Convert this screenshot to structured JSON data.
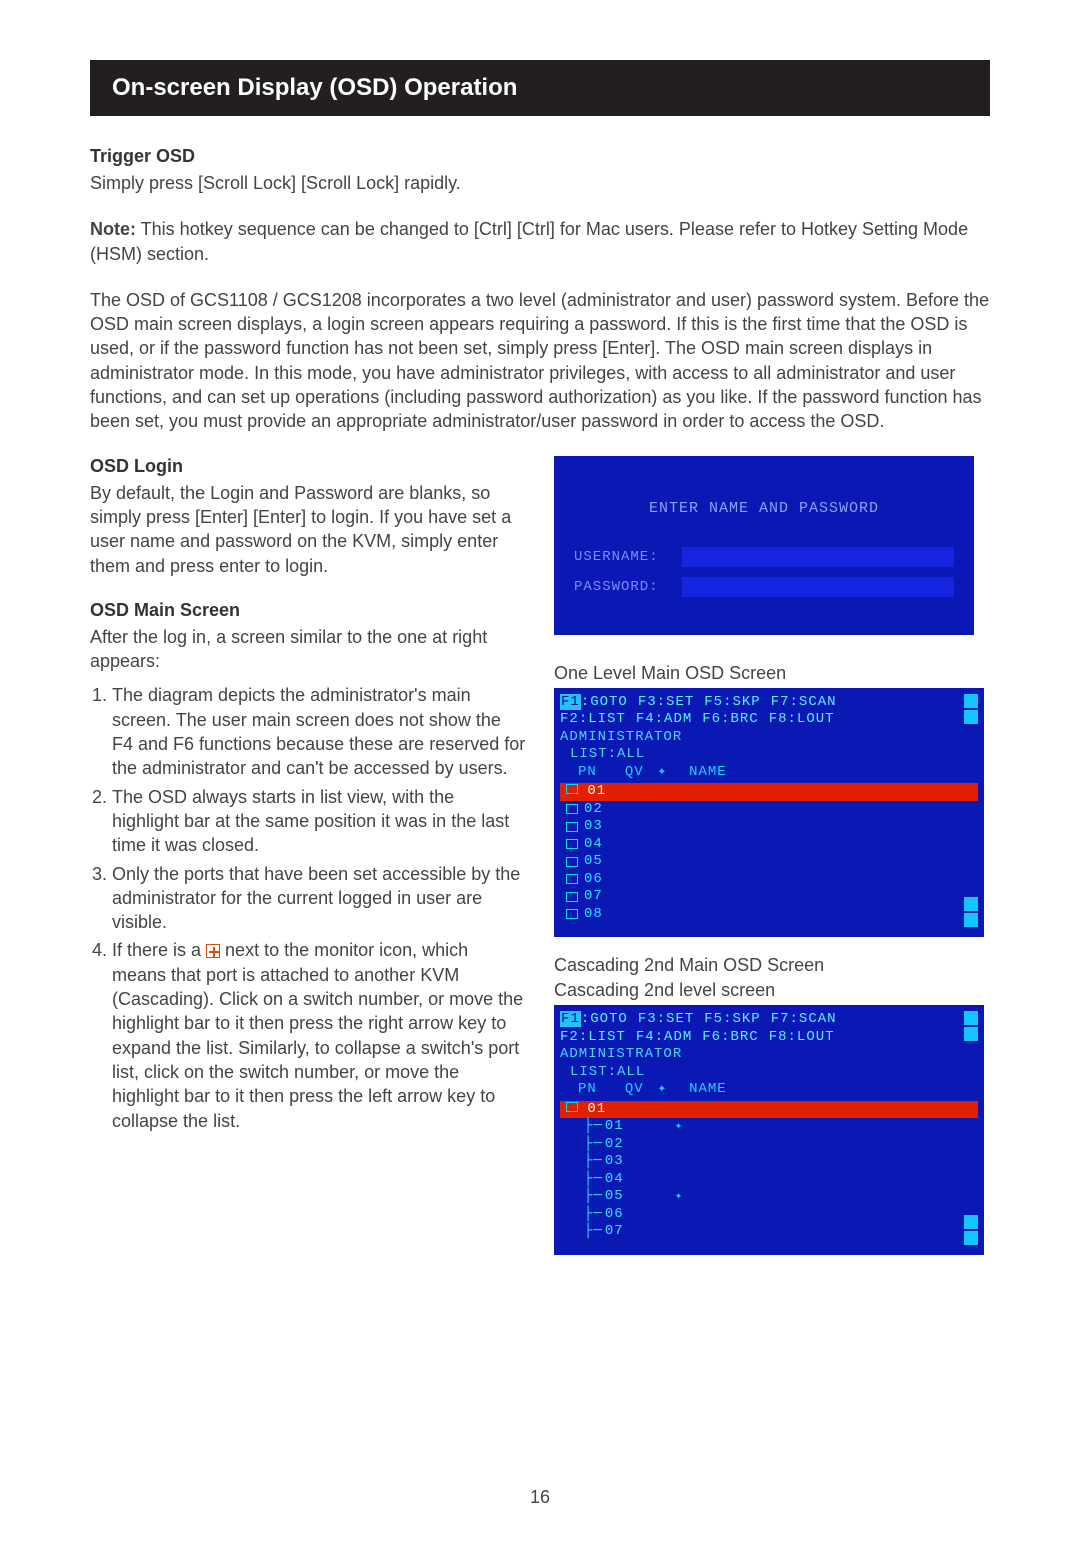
{
  "header": {
    "title": "On-screen Display (OSD) Operation"
  },
  "trigger": {
    "heading": "Trigger OSD",
    "text": "Simply press [Scroll Lock] [Scroll Lock] rapidly."
  },
  "note": {
    "label": "Note:",
    "text": " This hotkey sequence can be changed to [Ctrl] [Ctrl] for Mac users. Please refer to Hotkey Setting Mode (HSM) section."
  },
  "intro": "The OSD of GCS1108 / GCS1208 incorporates a two level (administrator and user) password system. Before the OSD main screen displays, a login screen appears requiring a password. If this is the first time that the OSD is used, or if the password function has not been set, simply press [Enter]. The OSD main screen displays in administrator mode. In this mode, you have administrator privileges, with access to all administrator and user functions, and can set up operations (including password authorization) as you like. If the password function has been set, you must provide an appropriate administrator/user password in order to access the OSD.",
  "osd_login": {
    "heading": "OSD Login",
    "text": "By default, the Login and Password are blanks, so simply press [Enter] [Enter] to login. If you have set a user name and password on the KVM, simply enter them and press enter to login.",
    "screen_title": "ENTER NAME AND PASSWORD",
    "username_label": "USERNAME:",
    "password_label": "PASSWORD:"
  },
  "main_screen": {
    "heading": "OSD Main Screen",
    "intro": "After the log in, a screen similar to the one at right  appears:",
    "items": [
      "The diagram depicts the administrator's main screen. The user main screen does not show the F4 and F6 functions because these are reserved for the administrator and can't be accessed by users.",
      "The OSD always starts in list view, with the highlight bar at the same position it was in the last time it was closed.",
      "Only the ports that have been set accessible by the administrator for the current logged in user are visible.",
      "If there is a  next to the monitor icon, which means that port is attached to another KVM (Cascading). Click on a switch number, or move the highlight bar to it then press the right arrow key to expand the list. Similarly, to collapse a switch's port list, click on the switch number, or move the highlight bar to it then press the left arrow key to collapse the list."
    ],
    "item4_prefix": "If there is a ",
    "item4_suffix": " next to the monitor icon, which means that port is attached to another KVM (Cascading). Click on a switch number, or move the highlight bar to it then press the right arrow key to expand the list. Similarly, to collapse a switch's port list, click on the switch number, or move the highlight bar to it then press the left arrow key to collapse the list."
  },
  "osd_main": {
    "caption": "One Level Main OSD Screen",
    "fkeys_row1": [
      {
        "k": "F1",
        "l": "GOTO"
      },
      {
        "k": "F3",
        "l": "SET"
      },
      {
        "k": "F5",
        "l": "SKP"
      },
      {
        "k": "F7",
        "l": "SCAN"
      }
    ],
    "fkeys_row2": [
      {
        "k": "F2",
        "l": "LIST"
      },
      {
        "k": "F4",
        "l": "ADM"
      },
      {
        "k": "F6",
        "l": "BRC"
      },
      {
        "k": "F8",
        "l": "LOUT"
      }
    ],
    "admin": "ADMINISTRATOR",
    "list": "LIST:ALL",
    "cols": [
      "PN",
      "QV",
      "✦",
      "NAME"
    ],
    "highlight": "01",
    "ports": [
      "02",
      "03",
      "04",
      "05",
      "06",
      "07",
      "08"
    ]
  },
  "osd_cascade": {
    "caption1": "Cascading 2nd Main OSD Screen",
    "caption2": "Cascading 2nd level screen",
    "highlight": "01",
    "subports": [
      "01",
      "02",
      "03",
      "04",
      "05",
      "06",
      "07"
    ],
    "sun_rows": [
      "01",
      "05"
    ]
  },
  "page_number": "16",
  "colors": {
    "header_bg": "#231f20",
    "osd_bg": "#0a18b4",
    "osd_cyan": "#33e0ff",
    "osd_red": "#e02000"
  }
}
